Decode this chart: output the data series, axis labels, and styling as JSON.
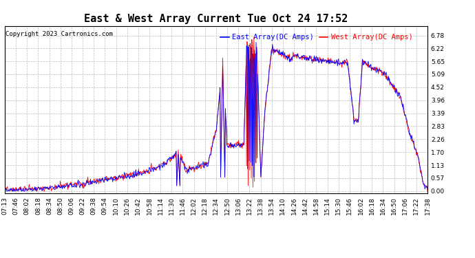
{
  "title": "East & West Array Current Tue Oct 24 17:52",
  "copyright": "Copyright 2023 Cartronics.com",
  "legend_east": "East Array(DC Amps)",
  "legend_west": "West Array(DC Amps)",
  "east_color": "#0000ff",
  "west_color": "#ff0000",
  "background_color": "#ffffff",
  "grid_color": "#bbbbbb",
  "yticks": [
    0.0,
    0.57,
    1.13,
    1.7,
    2.26,
    2.83,
    3.39,
    3.96,
    4.52,
    5.09,
    5.65,
    6.22,
    6.78
  ],
  "ylim": [
    -0.1,
    7.2
  ],
  "x_labels": [
    "07:13",
    "07:46",
    "08:02",
    "08:18",
    "08:34",
    "08:50",
    "09:06",
    "09:22",
    "09:38",
    "09:54",
    "10:10",
    "10:26",
    "10:42",
    "10:58",
    "11:14",
    "11:30",
    "11:46",
    "12:02",
    "12:18",
    "12:34",
    "12:50",
    "13:06",
    "13:22",
    "13:38",
    "13:54",
    "14:10",
    "14:26",
    "14:42",
    "14:58",
    "15:14",
    "15:30",
    "15:46",
    "16:02",
    "16:18",
    "16:34",
    "16:50",
    "17:06",
    "17:22",
    "17:38"
  ],
  "title_fontsize": 11,
  "tick_fontsize": 6.5,
  "legend_fontsize": 7.5,
  "copyright_fontsize": 6.5
}
